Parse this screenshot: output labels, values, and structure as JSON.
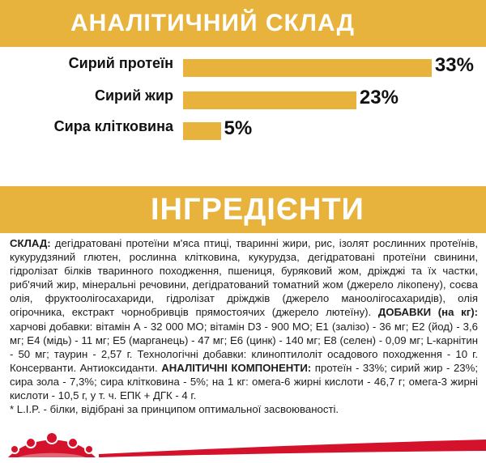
{
  "analytical": {
    "title": "АНАЛІТИЧНИЙ СКЛАД",
    "bars": [
      {
        "label": "Сирий протеїн",
        "percent": 33,
        "value_text": "33%"
      },
      {
        "label": "Сирий жир",
        "percent": 23,
        "value_text": "23%"
      },
      {
        "label": "Сира клітковина",
        "percent": 5,
        "value_text": "5%"
      }
    ]
  },
  "ingredients": {
    "title": "ІНГРЕДІЄНТИ",
    "composition_label": "СКЛАД:",
    "composition_text": " дегідратовані протеїни м'яса птиці, тваринні жири, рис, ізолят рослинних протеїнів, кукурудзяний глютен, рослинна клітковина, кукурудза, дегідратовані протеїни свинини, гідролізат білків тваринного походження, пшениця, буряковий жом, дріжджі та їх частки, риб'ячий жир, мінеральні речовини, дегідратований томатний жом (джерело лікопену), соєва олія, фруктоолігосахариди, гідролізат дріжджів (джерело маноолігосахаридів), олія огірочника, екстракт чорнобривців прямостоячих (джерело лютеїну). ",
    "additives_label": "ДОБАВКИ (на кг):",
    "additives_text": " харчові добавки: вітамін А - 32 000 МО; вітамін D3 - 900 МО; Е1 (залізо) - 36 мг; Е2 (йод) - 3,6 мг; Е4 (мідь) - 11 мг; Е5 (марганець) - 47 мг; Е6 (цинк) - 140 мг; Е8 (селен) - 0,09 мг; L-карнітин - 50 мг; таурин - 2,57 г. Технологічні добавки: клиноптилоліт осадового походження - 10 г. Консерванти. Антиоксиданти. ",
    "analytical_label": "АНАЛІТИЧНІ КОМПОНЕНТИ:",
    "analytical_text": " протеїн - 33%; сирий жир - 23%; сира зола - 7,3%; сира клітковина - 5%; на 1 кг: омега-6 жирні кислоти - 46,7 г; омега-3 жирні кислоти - 10,5 г, у т. ч. ЕПК + ДГК - 4 г.",
    "footnote": "* L.I.P. - білки, відібрані за принципом оптимальної засвоюваності."
  },
  "colors": {
    "accent": "#e8b33d",
    "brand_red": "#d5122b"
  },
  "footer": {
    "logo_icon": "royal-canin-crown-icon"
  }
}
